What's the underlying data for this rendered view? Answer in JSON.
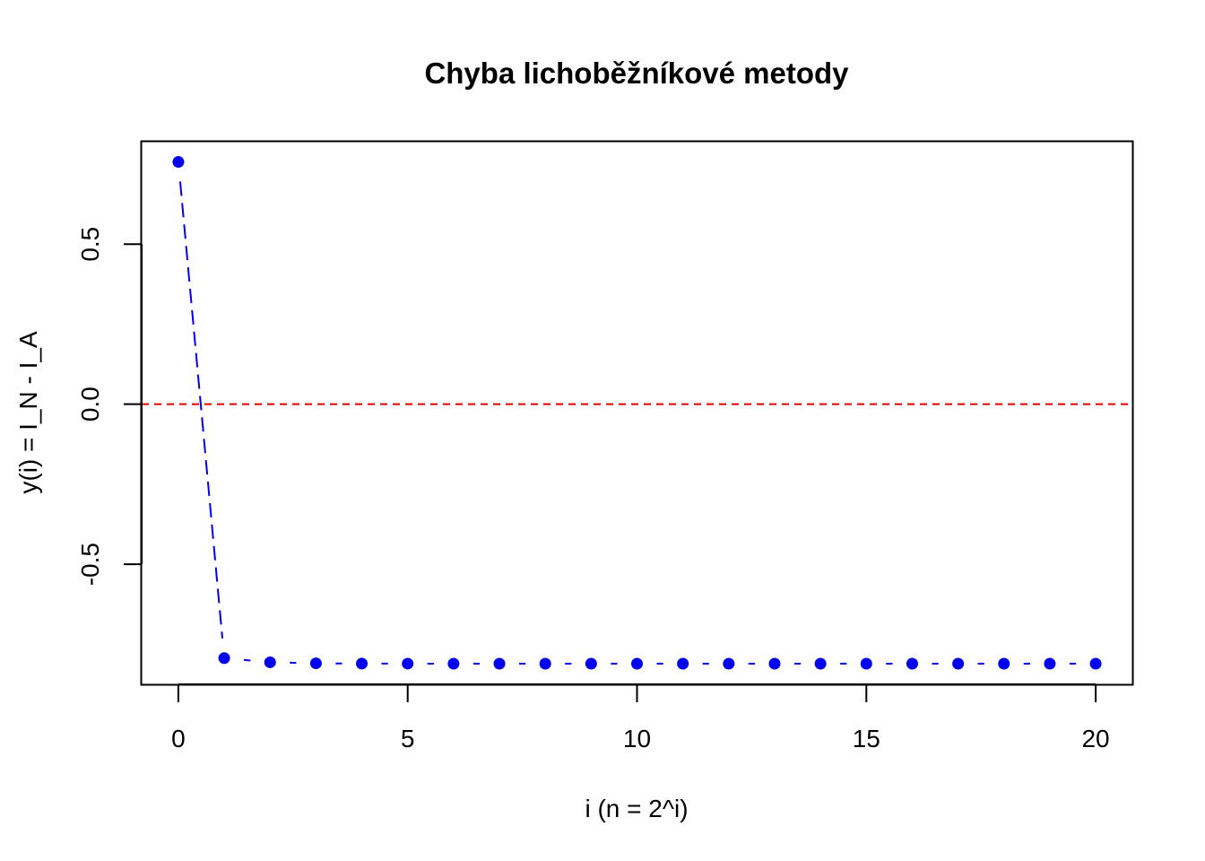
{
  "chart_data": {
    "type": "line",
    "title": "Chyba lichoběžníkové metody",
    "xlabel": "i (n = 2^i)",
    "ylabel": "y(i) = I_N - I_A",
    "xlim": [
      -0.8,
      20.8
    ],
    "ylim": [
      -0.875,
      0.82
    ],
    "x_ticks": [
      0,
      5,
      10,
      15,
      20
    ],
    "x_tick_labels": [
      "0",
      "5",
      "10",
      "15",
      "20"
    ],
    "y_ticks": [
      -0.5,
      0.0,
      0.5
    ],
    "y_tick_labels": [
      "-0.5",
      "0.0",
      "0.5"
    ],
    "grid": false,
    "legend": "none",
    "reference_line": {
      "y": 0,
      "style": "dashed",
      "color": "#dd0000"
    },
    "series": [
      {
        "color": "#0000ee",
        "marker": "filled-circle",
        "x": [
          0,
          1,
          2,
          3,
          4,
          5,
          6,
          7,
          8,
          9,
          10,
          11,
          12,
          13,
          14,
          15,
          16,
          17,
          18,
          19,
          20
        ],
        "values": [
          0.7568,
          -0.7932,
          -0.8062,
          -0.8094,
          -0.8102,
          -0.8104,
          -0.8105,
          -0.8105,
          -0.8105,
          -0.8105,
          -0.8105,
          -0.8105,
          -0.8105,
          -0.8105,
          -0.8105,
          -0.8105,
          -0.8105,
          -0.8105,
          -0.8105,
          -0.8105,
          -0.8105
        ]
      }
    ]
  }
}
